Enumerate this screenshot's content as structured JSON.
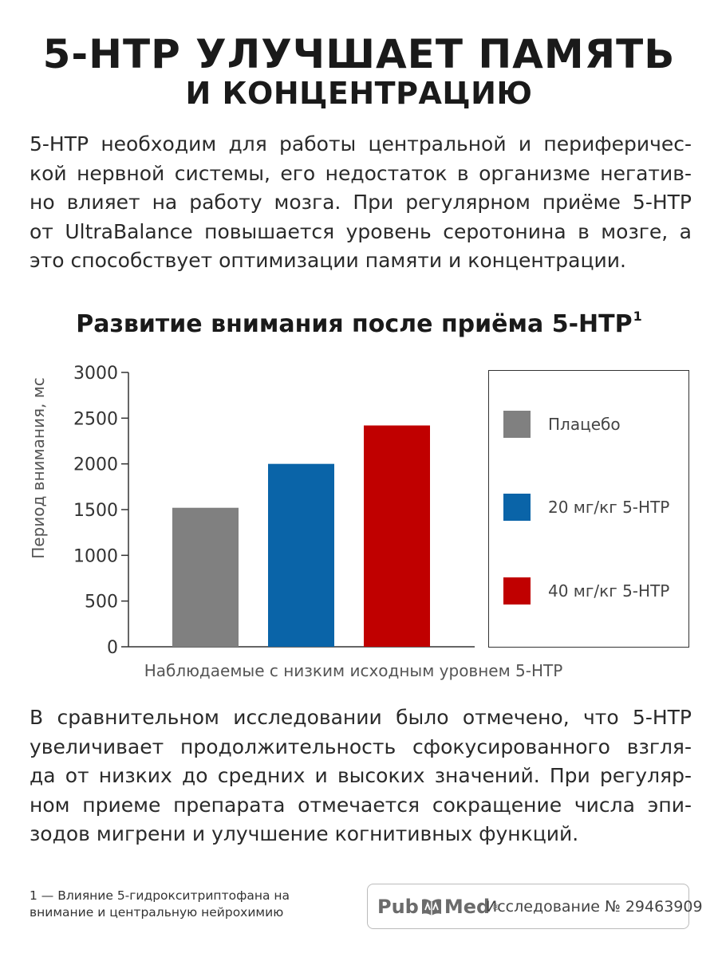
{
  "header": {
    "title_line1": "5-HTP УЛУЧШАЕТ ПАМЯТЬ",
    "title_line2": "И КОНЦЕНТРАЦИЮ"
  },
  "intro_lines": [
    "5-HTP необходим для работы центральной и периферичес-",
    "кой нервной системы, его недостаток в организме негатив-",
    "но влияет на работу мозга. При регулярном приёме 5-HTP",
    "от UltraBalance повышается уровень серотонина в мозге, а",
    "это способствует оптимизации памяти и концентрации."
  ],
  "chart_data": {
    "type": "bar",
    "title": "Развитие внимания после приёма 5-HTP",
    "title_footnote_mark": "1",
    "xlabel": "Наблюдаемые с низким исходным уровнем 5-HTP",
    "ylabel": "Период внимания, мс",
    "ylim": [
      0,
      3000
    ],
    "yticks": [
      "0",
      "500",
      "1000",
      "1500",
      "2000",
      "2500",
      "3000"
    ],
    "grid": false,
    "legend_position": "right",
    "series": [
      {
        "name": "Плацебо",
        "value": 1520,
        "color": "#808080"
      },
      {
        "name": "20 мг/кг 5-HTP",
        "value": 2000,
        "color": "#0a64a8"
      },
      {
        "name": "40 мг/кг 5-HTP",
        "value": 2420,
        "color": "#c00000"
      }
    ]
  },
  "conclusion_lines": [
    "В сравнительном исследовании было отмечено, что 5-HTP",
    "увеличивает продолжительность сфокусированного взгля-",
    "да от низких до средних и высоких значений. При регуляр-",
    "ном приеме препарата отмечается сокращение числа эпи-",
    "зодов мигрени и улучшение когнитивных функций."
  ],
  "footnote": {
    "line1": "1 — Влияние 5-гидрокситриптофана на",
    "line2": "внимание и центральную нейрохимию"
  },
  "source": {
    "logo_part1": "Pub",
    "logo_part2": "Med",
    "logo_mark": "®",
    "logo_icon": "pubmed-book-icon",
    "study": "Исследование № 29463909"
  }
}
